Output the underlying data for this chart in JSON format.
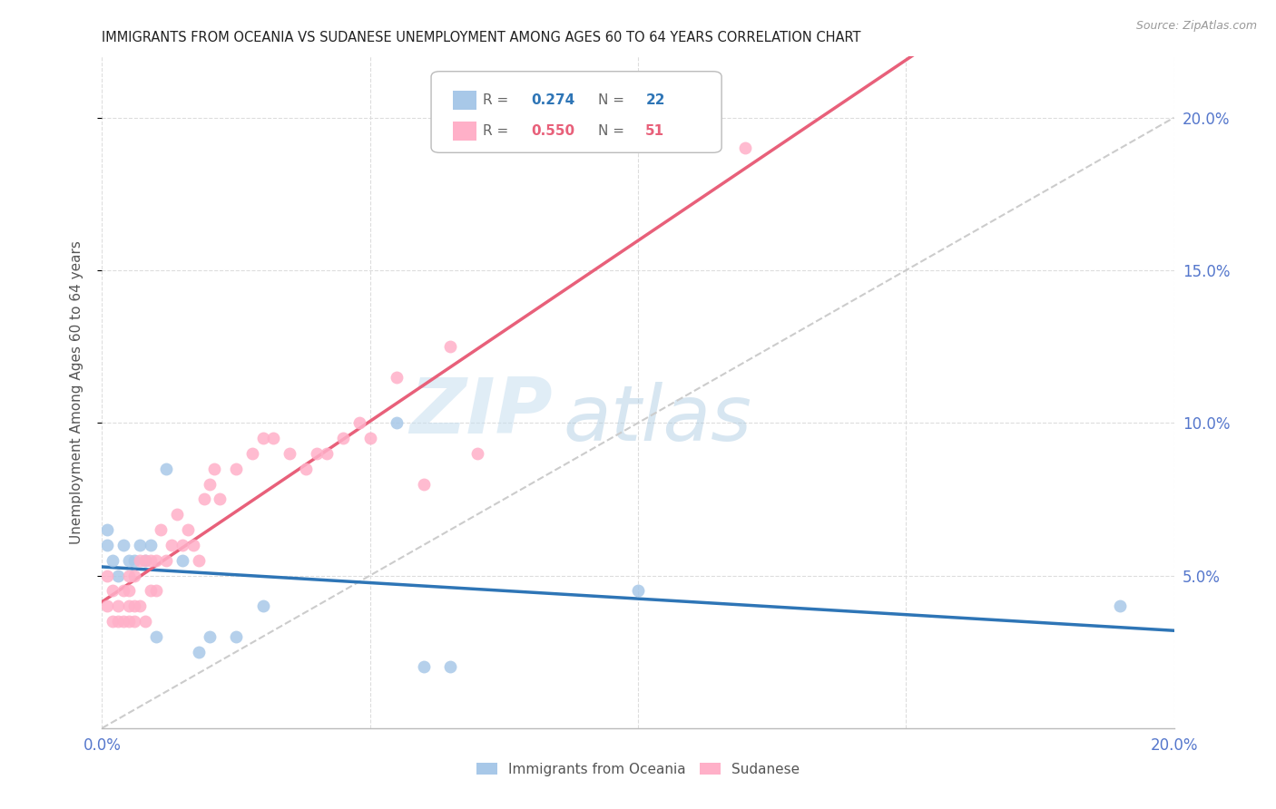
{
  "title": "IMMIGRANTS FROM OCEANIA VS SUDANESE UNEMPLOYMENT AMONG AGES 60 TO 64 YEARS CORRELATION CHART",
  "source": "Source: ZipAtlas.com",
  "ylabel": "Unemployment Among Ages 60 to 64 years",
  "xlim": [
    0,
    0.2
  ],
  "ylim": [
    0,
    0.22
  ],
  "R1": 0.274,
  "N1": 22,
  "R2": 0.55,
  "N2": 51,
  "color1": "#A8C8E8",
  "color2": "#FFB0C8",
  "trendline1_color": "#2E75B6",
  "trendline2_color": "#E8607A",
  "diagonal_color": "#CCCCCC",
  "background": "#FFFFFF",
  "watermark_zip": "ZIP",
  "watermark_atlas": "atlas",
  "oceania_x": [
    0.001,
    0.001,
    0.002,
    0.003,
    0.004,
    0.005,
    0.006,
    0.007,
    0.008,
    0.009,
    0.01,
    0.012,
    0.015,
    0.018,
    0.02,
    0.025,
    0.03,
    0.055,
    0.06,
    0.065,
    0.1,
    0.19
  ],
  "oceania_y": [
    0.06,
    0.065,
    0.055,
    0.05,
    0.06,
    0.055,
    0.055,
    0.06,
    0.055,
    0.06,
    0.03,
    0.085,
    0.055,
    0.025,
    0.03,
    0.03,
    0.04,
    0.1,
    0.02,
    0.02,
    0.045,
    0.04
  ],
  "sudanese_x": [
    0.001,
    0.001,
    0.002,
    0.002,
    0.003,
    0.003,
    0.004,
    0.004,
    0.005,
    0.005,
    0.005,
    0.005,
    0.006,
    0.006,
    0.006,
    0.007,
    0.007,
    0.008,
    0.008,
    0.009,
    0.009,
    0.01,
    0.01,
    0.011,
    0.012,
    0.013,
    0.014,
    0.015,
    0.016,
    0.017,
    0.018,
    0.019,
    0.02,
    0.021,
    0.022,
    0.025,
    0.028,
    0.03,
    0.032,
    0.035,
    0.038,
    0.04,
    0.042,
    0.045,
    0.048,
    0.05,
    0.055,
    0.06,
    0.065,
    0.07,
    0.12
  ],
  "sudanese_y": [
    0.04,
    0.05,
    0.035,
    0.045,
    0.035,
    0.04,
    0.035,
    0.045,
    0.035,
    0.04,
    0.045,
    0.05,
    0.035,
    0.04,
    0.05,
    0.04,
    0.055,
    0.035,
    0.055,
    0.045,
    0.055,
    0.045,
    0.055,
    0.065,
    0.055,
    0.06,
    0.07,
    0.06,
    0.065,
    0.06,
    0.055,
    0.075,
    0.08,
    0.085,
    0.075,
    0.085,
    0.09,
    0.095,
    0.095,
    0.09,
    0.085,
    0.09,
    0.09,
    0.095,
    0.1,
    0.095,
    0.115,
    0.08,
    0.125,
    0.09,
    0.19
  ]
}
